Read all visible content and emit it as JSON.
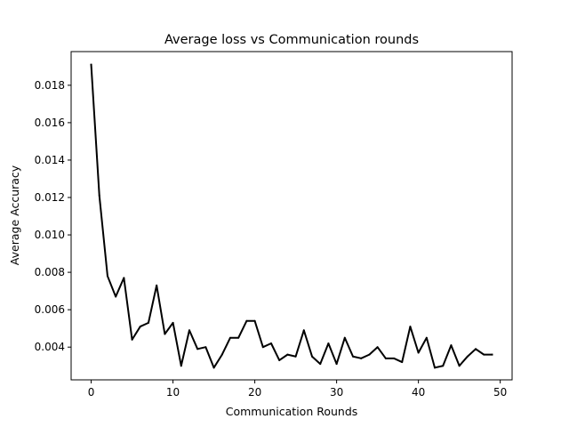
{
  "chart_data": {
    "type": "line",
    "title": "Average loss vs Communication rounds",
    "xlabel": "Communication Rounds",
    "ylabel": "Average Accuracy",
    "xlim": [
      -2.45,
      51.45
    ],
    "ylim": [
      0.00225,
      0.0198
    ],
    "xticks": [
      0,
      10,
      20,
      30,
      40,
      50
    ],
    "xtick_labels": [
      "0",
      "10",
      "20",
      "30",
      "40",
      "50"
    ],
    "yticks": [
      0.004,
      0.006,
      0.008,
      0.01,
      0.012,
      0.014,
      0.016,
      0.018
    ],
    "ytick_labels": [
      "0.004",
      "0.006",
      "0.008",
      "0.010",
      "0.012",
      "0.014",
      "0.016",
      "0.018"
    ],
    "grid": false,
    "line_color": "#000000",
    "series": [
      {
        "x": [
          0,
          1,
          2,
          3,
          4,
          5,
          6,
          7,
          8,
          9,
          10,
          11,
          12,
          13,
          14,
          15,
          16,
          17,
          18,
          19,
          20,
          21,
          22,
          23,
          24,
          25,
          26,
          27,
          28,
          29,
          30,
          31,
          32,
          33,
          34,
          35,
          36,
          37,
          38,
          39,
          40,
          41,
          42,
          43,
          44,
          45,
          46,
          47,
          48,
          49
        ],
        "values": [
          0.0191,
          0.0121,
          0.0078,
          0.0067,
          0.0077,
          0.0044,
          0.0051,
          0.0053,
          0.0073,
          0.0047,
          0.0053,
          0.003,
          0.0049,
          0.0039,
          0.004,
          0.0029,
          0.0036,
          0.0045,
          0.0045,
          0.0054,
          0.0054,
          0.004,
          0.0042,
          0.0033,
          0.0036,
          0.0035,
          0.0049,
          0.0035,
          0.0031,
          0.0042,
          0.0031,
          0.0045,
          0.0035,
          0.0034,
          0.0036,
          0.004,
          0.0034,
          0.0034,
          0.0032,
          0.0051,
          0.0037,
          0.0045,
          0.0029,
          0.003,
          0.0041,
          0.003,
          0.0035,
          0.0039,
          0.0036,
          0.0036
        ]
      }
    ]
  }
}
